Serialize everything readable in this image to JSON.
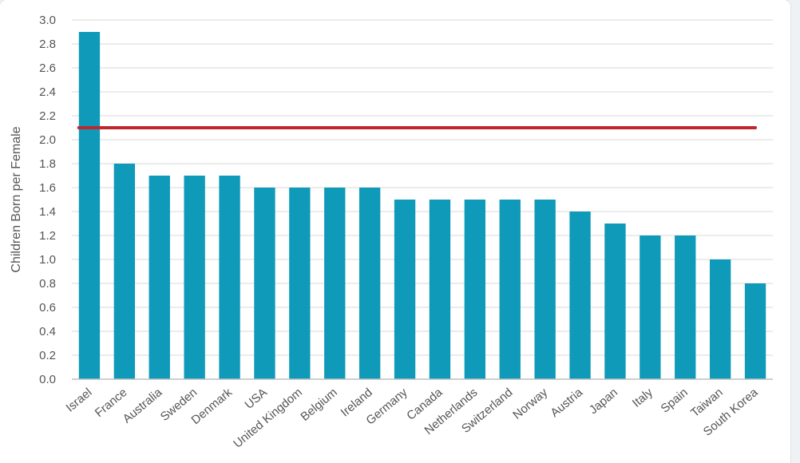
{
  "chart_data": {
    "type": "bar",
    "title": "",
    "xlabel": "",
    "ylabel": "Children Born per Female",
    "ylim": [
      0,
      3.0
    ],
    "ytick_step": 0.2,
    "grid": true,
    "categories": [
      "Israel",
      "France",
      "Australia",
      "Sweden",
      "Denmark",
      "USA",
      "United Kingdom",
      "Belgium",
      "Ireland",
      "Germany",
      "Canada",
      "Netherlands",
      "Switzerland",
      "Norway",
      "Austria",
      "Japan",
      "Italy",
      "Spain",
      "Taiwan",
      "South Korea"
    ],
    "series": [
      {
        "values": [
          2.9,
          1.8,
          1.7,
          1.7,
          1.7,
          1.6,
          1.6,
          1.6,
          1.6,
          1.5,
          1.5,
          1.5,
          1.5,
          1.5,
          1.4,
          1.3,
          1.2,
          1.2,
          1.0,
          0.8
        ]
      }
    ],
    "reference_line": {
      "value": 2.1
    },
    "colors": {
      "bar": "#0e9ab8",
      "reference_line": "#c0272d",
      "grid": "#d9d9d9",
      "axis": "#bfbfbf"
    }
  }
}
